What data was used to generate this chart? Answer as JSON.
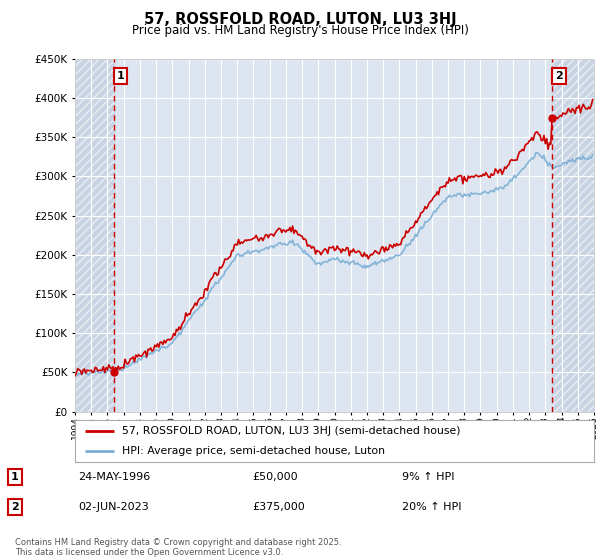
{
  "title": "57, ROSSFOLD ROAD, LUTON, LU3 3HJ",
  "subtitle": "Price paid vs. HM Land Registry's House Price Index (HPI)",
  "legend_label_red": "57, ROSSFOLD ROAD, LUTON, LU3 3HJ (semi-detached house)",
  "legend_label_blue": "HPI: Average price, semi-detached house, Luton",
  "footer": "Contains HM Land Registry data © Crown copyright and database right 2025.\nThis data is licensed under the Open Government Licence v3.0.",
  "transaction1_label": "1",
  "transaction1_date": "24-MAY-1996",
  "transaction1_price": "£50,000",
  "transaction1_hpi": "9% ↑ HPI",
  "transaction1_year": 1996.38,
  "transaction1_value": 50000,
  "transaction2_label": "2",
  "transaction2_date": "02-JUN-2023",
  "transaction2_price": "£375,000",
  "transaction2_hpi": "20% ↑ HPI",
  "transaction2_year": 2023.41,
  "transaction2_value": 375000,
  "xmin": 1994,
  "xmax": 2026,
  "ymin": 0,
  "ymax": 450000,
  "color_red": "#cc0000",
  "color_blue": "#7aaed6",
  "background_color": "#ffffff",
  "plot_bg_color": "#dde6f0",
  "hatch_color": "#c8d4e3"
}
